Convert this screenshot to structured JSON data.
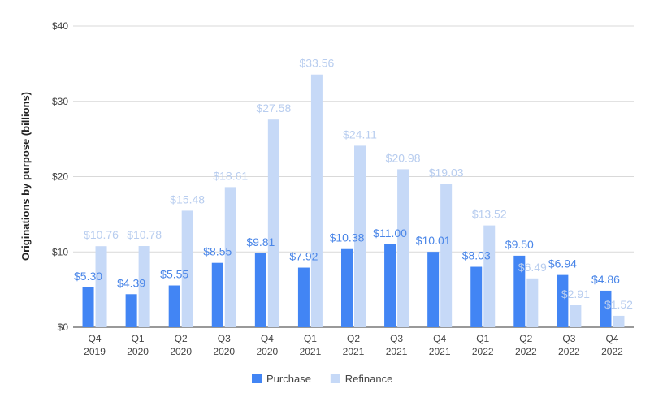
{
  "chart_data": {
    "type": "bar",
    "title": "",
    "xlabel": "",
    "ylabel": "Originations by purpose (billions)",
    "ylim": [
      0,
      40
    ],
    "yticks": [
      0,
      10,
      20,
      30,
      40
    ],
    "ytick_labels": [
      "$0",
      "$10",
      "$20",
      "$30",
      "$40"
    ],
    "value_prefix": "$",
    "grid": true,
    "legend_position": "bottom",
    "categories": [
      [
        "Q4",
        "2019"
      ],
      [
        "Q1",
        "2020"
      ],
      [
        "Q2",
        "2020"
      ],
      [
        "Q3",
        "2020"
      ],
      [
        "Q4",
        "2020"
      ],
      [
        "Q1",
        "2021"
      ],
      [
        "Q2",
        "2021"
      ],
      [
        "Q3",
        "2021"
      ],
      [
        "Q4",
        "2021"
      ],
      [
        "Q1",
        "2022"
      ],
      [
        "Q2",
        "2022"
      ],
      [
        "Q3",
        "2022"
      ],
      [
        "Q4",
        "2022"
      ]
    ],
    "series": [
      {
        "name": "Purchase",
        "color": "#4285f4",
        "values": [
          5.3,
          4.39,
          5.55,
          8.55,
          9.81,
          7.92,
          10.38,
          11.0,
          10.01,
          8.03,
          9.5,
          6.94,
          4.86
        ],
        "labels": [
          "$5.30",
          "$4.39",
          "$5.55",
          "$8.55",
          "$9.81",
          "$7.92",
          "$10.38",
          "$11.00",
          "$10.01",
          "$8.03",
          "$9.50",
          "$6.94",
          "$4.86"
        ]
      },
      {
        "name": "Refinance",
        "color": "#c6d9f7",
        "values": [
          10.76,
          10.78,
          15.48,
          18.61,
          27.58,
          33.56,
          24.11,
          20.98,
          19.03,
          13.52,
          6.49,
          2.91,
          1.52
        ],
        "labels": [
          "$10.76",
          "$10.78",
          "$15.48",
          "$18.61",
          "$27.58",
          "$33.56",
          "$24.11",
          "$20.98",
          "$19.03",
          "$13.52",
          "$6.49",
          "$2.91",
          "$1.52"
        ]
      }
    ]
  }
}
